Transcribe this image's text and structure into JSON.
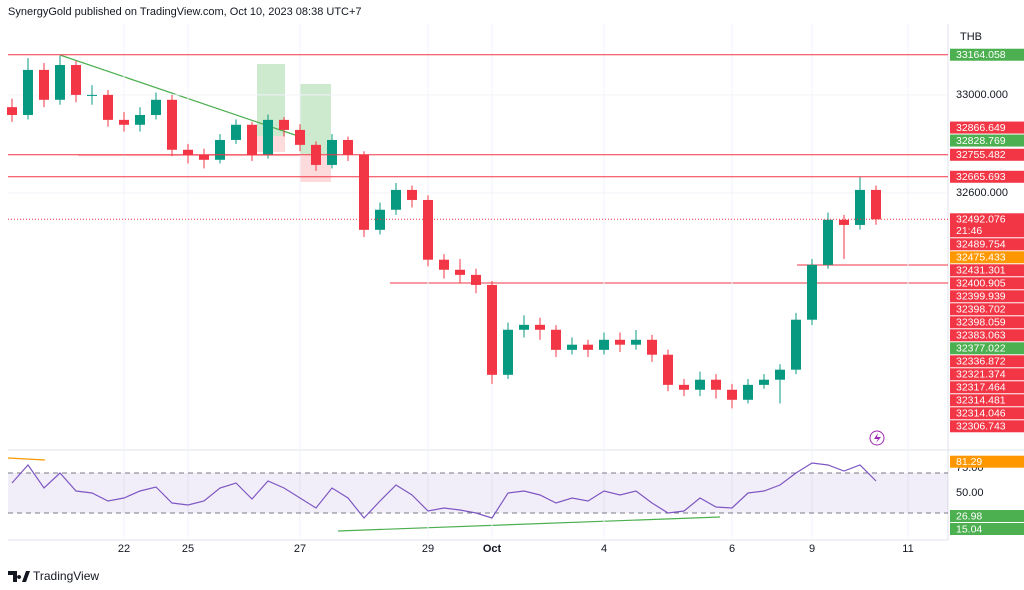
{
  "header": "SynergyGold published on TradingView.com, Oct 10, 2023 08:38 UTC+7",
  "footer": "TradingView",
  "chart_data": [
    {
      "type": "candlestick",
      "currency": "THB",
      "categories": [
        null,
        null,
        null,
        null,
        null,
        null,
        null,
        "22",
        null,
        null,
        null,
        "25",
        null,
        null,
        null,
        null,
        null,
        null,
        "27",
        null,
        null,
        null,
        null,
        null,
        null,
        null,
        "29",
        null,
        null,
        null,
        "Oct",
        null,
        null,
        null,
        null,
        null,
        null,
        "4",
        null,
        null,
        null,
        null,
        null,
        null,
        null,
        "6",
        null,
        null,
        null,
        null,
        "9",
        null,
        null,
        null,
        null,
        null,
        "11"
      ],
      "open": [
        32950,
        32918,
        33102,
        32980,
        33122,
        33000,
        33000,
        32898,
        32878,
        32918,
        32980,
        32776,
        32755,
        32735,
        32816,
        32878,
        32755,
        32898,
        32857,
        32796,
        32714,
        32816,
        32755,
        32449,
        32531,
        32612,
        32571,
        32327,
        32286,
        32265,
        32224,
        31857,
        32041,
        32061,
        32041,
        31959,
        31980,
        31959,
        32000,
        31980,
        32000,
        31939,
        31816,
        31796,
        31837,
        31796,
        31755,
        31816,
        31837,
        31878,
        32082,
        32306,
        32490,
        32469,
        32612,
        null,
        null
      ],
      "high": [
        32985,
        33150,
        33130,
        33160,
        33140,
        33040,
        33020,
        32930,
        32950,
        33010,
        33000,
        32800,
        32780,
        32840,
        32900,
        32890,
        32920,
        32910,
        32880,
        32810,
        32840,
        32830,
        32770,
        32560,
        32640,
        32630,
        32590,
        32350,
        32330,
        32290,
        32240,
        32070,
        32100,
        32090,
        32060,
        32010,
        32000,
        32030,
        32030,
        32040,
        32020,
        31960,
        31840,
        31870,
        31860,
        31820,
        31840,
        31860,
        31900,
        32110,
        32330,
        32520,
        32510,
        32665,
        32630,
        null,
        null
      ],
      "low": [
        32890,
        32900,
        32950,
        32960,
        32970,
        32960,
        32870,
        32850,
        32850,
        32900,
        32750,
        32720,
        32700,
        32720,
        32800,
        32730,
        32740,
        32830,
        32770,
        32690,
        32700,
        32730,
        32420,
        32430,
        32510,
        32540,
        32300,
        32250,
        32230,
        32190,
        31820,
        31840,
        32010,
        32000,
        31930,
        31940,
        31930,
        31940,
        31950,
        31960,
        31910,
        31790,
        31770,
        31770,
        31760,
        31720,
        31740,
        31800,
        31740,
        31860,
        32060,
        32290,
        32330,
        32450,
        32470,
        null,
        null
      ],
      "close": [
        32918,
        33102,
        32980,
        33122,
        33000,
        33000,
        32898,
        32878,
        32918,
        32980,
        32776,
        32755,
        32735,
        32816,
        32878,
        32755,
        32898,
        32857,
        32796,
        32714,
        32816,
        32755,
        32449,
        32531,
        32612,
        32571,
        32327,
        32286,
        32265,
        32224,
        31857,
        32041,
        32061,
        32041,
        31959,
        31980,
        31959,
        32000,
        31980,
        32000,
        31939,
        31816,
        31796,
        31837,
        31796,
        31755,
        31816,
        31837,
        31878,
        32082,
        32306,
        32490,
        32469,
        32612,
        32492,
        null,
        null
      ],
      "up_color": "#089981",
      "down_color": "#f23645",
      "level_color": "#f23645",
      "ylim": [
        31550,
        33265
      ],
      "yticks": [
        {
          "value": 32600,
          "label": "32600.000"
        },
        {
          "value": 33000,
          "label": "33000.000"
        }
      ],
      "grid": true,
      "price_labels": [
        {
          "value": 33164.058,
          "label": "33164.058",
          "color": "#4caf50",
          "line": true
        },
        {
          "value": 32866.649,
          "label": "32866.649",
          "color": "#f23645"
        },
        {
          "value": 32828.769,
          "label": "32828.769",
          "color": "#4caf50"
        },
        {
          "value": 32755.482,
          "label": "32755.482",
          "color": "#f23645",
          "line": true
        },
        {
          "value": 32665.693,
          "label": "32665.693",
          "color": "#f23645",
          "line": true
        },
        {
          "value": 32492.076,
          "label": "32492.076",
          "color": "#f23645",
          "countdown": "21:46"
        },
        {
          "value": 32489.754,
          "label": "32489.754",
          "color": "#f23645"
        },
        {
          "value": 32475.433,
          "label": "32475.433",
          "color": "#ff9800"
        },
        {
          "value": 32431.301,
          "label": "32431.301",
          "color": "#f23645"
        },
        {
          "value": 32400.905,
          "label": "32400.905",
          "color": "#f23645"
        },
        {
          "value": 32399.939,
          "label": "32399.939",
          "color": "#f23645"
        },
        {
          "value": 32398.702,
          "label": "32398.702",
          "color": "#f23645"
        },
        {
          "value": 32398.059,
          "label": "32398.059",
          "color": "#f23645"
        },
        {
          "value": 32383.063,
          "label": "32383.063",
          "color": "#f23645"
        },
        {
          "value": 32377.022,
          "label": "32377.022",
          "color": "#4caf50"
        },
        {
          "value": 32336.872,
          "label": "32336.872",
          "color": "#f23645"
        },
        {
          "value": 32321.374,
          "label": "32321.374",
          "color": "#f23645"
        },
        {
          "value": 32317.464,
          "label": "32317.464",
          "color": "#f23645"
        },
        {
          "value": 32314.481,
          "label": "32314.481",
          "color": "#f23645"
        },
        {
          "value": 32314.046,
          "label": "32314.046",
          "color": "#f23645"
        },
        {
          "value": 32306.743,
          "label": "32306.743",
          "color": "#f23645"
        }
      ]
    },
    {
      "type": "line",
      "color": "#7e57c2",
      "values": [
        60,
        78,
        55,
        70,
        52,
        50,
        42,
        45,
        52,
        56,
        40,
        38,
        42,
        55,
        60,
        44,
        62,
        55,
        45,
        35,
        55,
        45,
        25,
        42,
        58,
        48,
        32,
        35,
        33,
        30,
        25,
        50,
        52,
        48,
        40,
        45,
        42,
        52,
        48,
        52,
        40,
        30,
        32,
        45,
        36,
        35,
        50,
        52,
        58,
        70,
        80,
        78,
        72,
        78,
        62,
        null,
        null
      ],
      "ylim": [
        3,
        88
      ],
      "yticks": [
        {
          "value": 75,
          "label": "75.00"
        },
        {
          "value": 50,
          "label": "50.00"
        }
      ],
      "band": [
        30,
        70
      ],
      "band_color": "#7e57c2",
      "price_labels": [
        {
          "value": 81.29,
          "label": "81.29",
          "color": "#ff9800"
        },
        {
          "value": 26.98,
          "label": "26.98",
          "color": "#4caf50"
        },
        {
          "value": 15.04,
          "label": "15.04",
          "color": "#4caf50"
        }
      ]
    }
  ]
}
